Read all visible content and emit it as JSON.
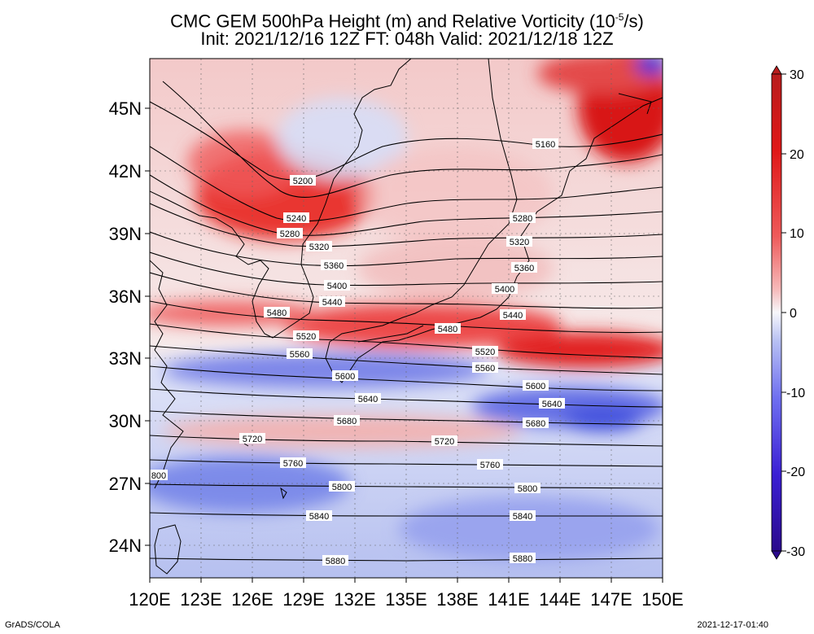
{
  "header": {
    "title_line1_prefix": "CMC GEM 500hPa Height (m) and Relative Vorticity (10",
    "title_line1_exp": "-5",
    "title_line1_suffix": "/s)",
    "title_line2": "Init: 2021/12/16 12Z  FT: 048h  Valid: 2021/12/18 12Z"
  },
  "axes": {
    "lat_labels": [
      "45N",
      "42N",
      "39N",
      "36N",
      "33N",
      "30N",
      "27N",
      "24N"
    ],
    "lon_labels": [
      "120E",
      "123E",
      "126E",
      "129E",
      "132E",
      "135E",
      "138E",
      "141E",
      "144E",
      "147E",
      "150E"
    ]
  },
  "colorbar": {
    "labels": [
      "30",
      "20",
      "10",
      "0",
      "-10",
      "-20",
      "-30"
    ],
    "colors": [
      "#2a0a8c",
      "#3b1fd4",
      "#6f6ff0",
      "#a9b4f5",
      "#f2f2f8",
      "#f2a3a3",
      "#ee5a5a",
      "#e01818",
      "#b81c1c"
    ]
  },
  "contours": {
    "labels": [
      "5160",
      "5200",
      "5240",
      "5280",
      "5280",
      "5320",
      "5320",
      "5360",
      "5360",
      "5400",
      "5400",
      "5440",
      "5440",
      "5480",
      "5480",
      "5520",
      "5520",
      "5560",
      "5560",
      "5600",
      "5600",
      "5640",
      "5640",
      "5680",
      "5680",
      "5720",
      "5720",
      "5760",
      "5760",
      "800",
      "5800",
      "5800",
      "5840",
      "5840",
      "5880",
      "5880"
    ]
  },
  "footer": {
    "left": "GrADS/COLA",
    "right": "2021-12-17-01:40"
  }
}
